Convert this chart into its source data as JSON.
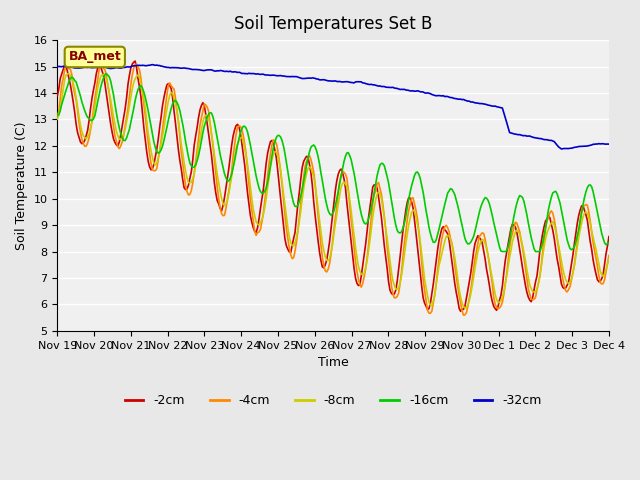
{
  "title": "Soil Temperatures Set B",
  "xlabel": "Time",
  "ylabel": "Soil Temperature (C)",
  "ylim": [
    5.0,
    16.0
  ],
  "yticks": [
    5.0,
    6.0,
    7.0,
    8.0,
    9.0,
    10.0,
    11.0,
    12.0,
    13.0,
    14.0,
    15.0,
    16.0
  ],
  "xtick_labels": [
    "Nov 19",
    "Nov 20",
    "Nov 21",
    "Nov 22",
    "Nov 23",
    "Nov 24",
    "Nov 25",
    "Nov 26",
    "Nov 27",
    "Nov 28",
    "Nov 29",
    "Nov 30",
    "Dec 1",
    "Dec 2",
    "Dec 3",
    "Dec 4"
  ],
  "legend_labels": [
    "-2cm",
    "-4cm",
    "-8cm",
    "-16cm",
    "-32cm"
  ],
  "legend_colors": [
    "#cc0000",
    "#ff8800",
    "#cccc00",
    "#00cc00",
    "#0000cc"
  ],
  "label_box_text": "BA_met",
  "background_color": "#e8e8e8",
  "plot_bg_color": "#f0f0f0",
  "grid_color": "#ffffff",
  "line_width": 1.2
}
